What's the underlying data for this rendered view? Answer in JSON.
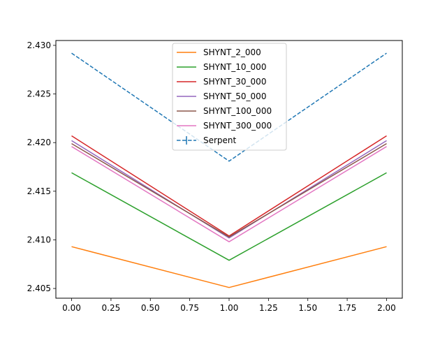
{
  "chart_data": {
    "type": "line",
    "title": "",
    "xlabel": "",
    "ylabel": "",
    "xlim": [
      -0.1,
      2.1
    ],
    "ylim": [
      2.404,
      2.4305
    ],
    "x_ticks": [
      0.0,
      0.25,
      0.5,
      0.75,
      1.0,
      1.25,
      1.5,
      1.75,
      2.0
    ],
    "x_tick_labels": [
      "0.00",
      "0.25",
      "0.50",
      "0.75",
      "1.00",
      "1.25",
      "1.50",
      "1.75",
      "2.00"
    ],
    "y_ticks": [
      2.405,
      2.41,
      2.415,
      2.42,
      2.425,
      2.43
    ],
    "y_tick_labels": [
      "2.405",
      "2.410",
      "2.415",
      "2.420",
      "2.425",
      "2.430"
    ],
    "grid": false,
    "legend_position": "top-center",
    "x": [
      0,
      1,
      2
    ],
    "series": [
      {
        "name": "SHYNT_2_000",
        "color": "#ff7f0e",
        "style": "solid",
        "values": [
          2.4093,
          2.4051,
          2.4093
        ]
      },
      {
        "name": "SHYNT_10_000",
        "color": "#2ca02c",
        "style": "solid",
        "values": [
          2.4169,
          2.4079,
          2.4169
        ]
      },
      {
        "name": "SHYNT_30_000",
        "color": "#d62728",
        "style": "solid",
        "values": [
          2.4207,
          2.4104,
          2.4207
        ]
      },
      {
        "name": "SHYNT_50_000",
        "color": "#9467bd",
        "style": "solid",
        "values": [
          2.4202,
          2.4102,
          2.4202
        ]
      },
      {
        "name": "SHYNT_100_000",
        "color": "#8c564b",
        "style": "solid",
        "values": [
          2.4199,
          2.4103,
          2.4199
        ]
      },
      {
        "name": "SHYNT_300_000",
        "color": "#e377c2",
        "style": "solid",
        "values": [
          2.4196,
          2.4098,
          2.4196
        ]
      },
      {
        "name": "Serpent",
        "color": "#1f77b4",
        "style": "dashed",
        "errorbar": true,
        "values": [
          2.4292,
          2.4181,
          2.4292
        ]
      }
    ]
  }
}
